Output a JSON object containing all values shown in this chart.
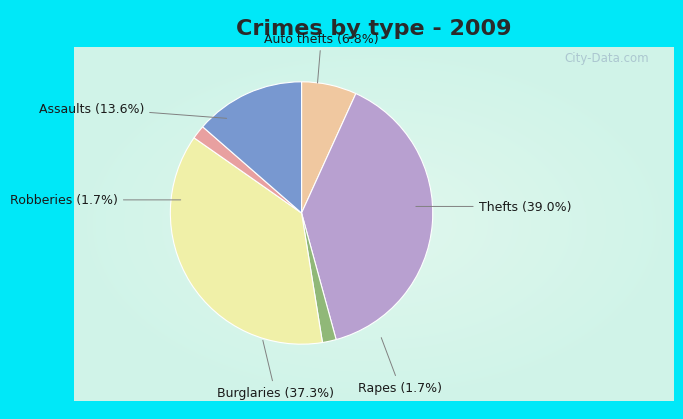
{
  "title": "Crimes by type - 2009",
  "slices": [
    {
      "label": "Thefts (39.0%)",
      "value": 39.0,
      "color": "#b8a0d0"
    },
    {
      "label": "Rapes (1.7%)",
      "value": 1.7,
      "color": "#90b878"
    },
    {
      "label": "Burglaries (37.3%)",
      "value": 37.3,
      "color": "#f0f0a8"
    },
    {
      "label": "Robberies (1.7%)",
      "value": 1.7,
      "color": "#e8a0a0"
    },
    {
      "label": "Assaults (13.6%)",
      "value": 13.6,
      "color": "#7898d0"
    },
    {
      "label": "Auto thefts (6.8%)",
      "value": 6.8,
      "color": "#f0c8a0"
    }
  ],
  "background_cyan": "#00e8f8",
  "title_color": "#2a2a2a",
  "title_fontsize": 16,
  "watermark": "City-Data.com",
  "label_fontsize": 9
}
